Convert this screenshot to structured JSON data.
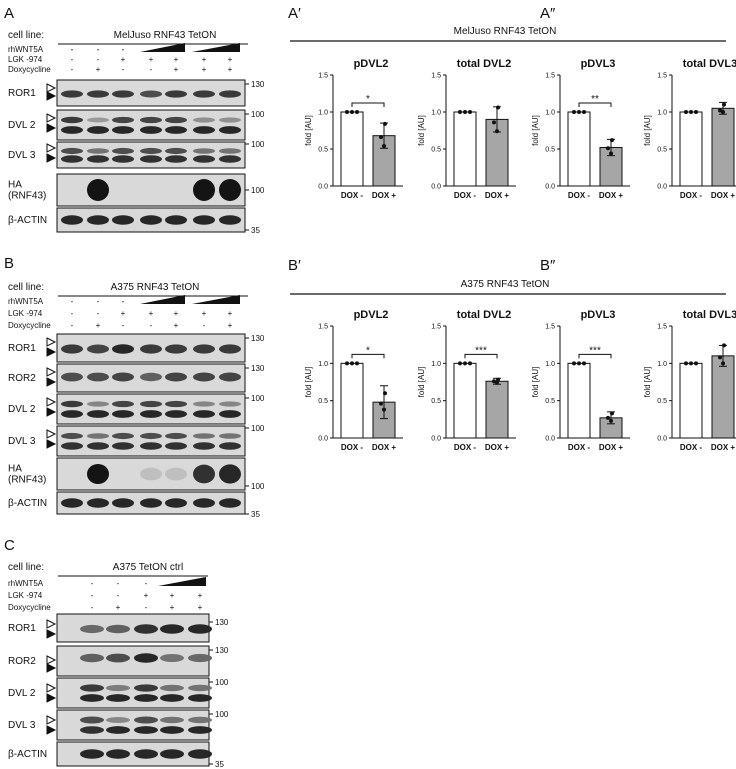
{
  "panels": {
    "A": {
      "letter": "A",
      "cell_line_label": "cell line:",
      "cell_line": "MelJuso   RNF43   TetON",
      "treatments": [
        {
          "label": "rhWNT5A",
          "values": [
            "-",
            "-",
            "-",
            "",
            "",
            " ",
            ""
          ]
        },
        {
          "label": "LGK -974",
          "values": [
            "-",
            "-",
            "+",
            "+",
            "+",
            "+",
            "+"
          ]
        },
        {
          "label": "Doxycycline",
          "values": [
            "-",
            "+",
            "-",
            "-",
            "+",
            "+",
            "+"
          ]
        }
      ],
      "blots": [
        {
          "name": "ROR1",
          "mw": "130"
        },
        {
          "name": "DVL 2",
          "mw": "100"
        },
        {
          "name": "DVL 3",
          "mw": "100"
        },
        {
          "name": "HA\n(RNF43)",
          "mw": "100"
        },
        {
          "name": "β-ACTIN",
          "mw": "35"
        }
      ]
    },
    "B": {
      "letter": "B",
      "cell_line_label": "cell line:",
      "cell_line": "A375   RNF43   TetON",
      "treatments": [
        {
          "label": "rhWNT5A"
        },
        {
          "label": "LGK -974",
          "values": [
            "-",
            "-",
            "+",
            "+",
            "+",
            "+",
            "+"
          ]
        },
        {
          "label": "Doxycycline",
          "values": [
            "-",
            "+",
            "-",
            "-",
            "+",
            "-",
            "+"
          ]
        }
      ],
      "blots": [
        {
          "name": "ROR1",
          "mw": "130"
        },
        {
          "name": "ROR2",
          "mw": "130"
        },
        {
          "name": "DVL 2",
          "mw": "100"
        },
        {
          "name": "DVL 3",
          "mw": "100"
        },
        {
          "name": "HA\n(RNF43)",
          "mw": "100"
        },
        {
          "name": "β-ACTIN",
          "mw": "35"
        }
      ]
    },
    "C": {
      "letter": "C",
      "cell_line_label": "cell line:",
      "cell_line": "A375   TetON   ctrl",
      "treatments": [
        {
          "label": "rhWNT5A"
        },
        {
          "label": "LGK -974",
          "values": [
            "-",
            "-",
            "+",
            "+",
            "+"
          ]
        },
        {
          "label": "Doxycycline",
          "values": [
            "-",
            "+",
            "-",
            "+",
            "+"
          ]
        }
      ],
      "blots": [
        {
          "name": "ROR1",
          "mw": "130"
        },
        {
          "name": "ROR2",
          "mw": "130"
        },
        {
          "name": "DVL 2",
          "mw": "100"
        },
        {
          "name": "DVL 3",
          "mw": "100"
        },
        {
          "name": "β-ACTIN",
          "mw": "35"
        }
      ]
    }
  },
  "chart_data": [
    {
      "group_letters": [
        "A′",
        "A″"
      ],
      "group_title": "MelJuso   RNF43   TetON",
      "charts": [
        {
          "type": "bar",
          "title": "pDVL2",
          "categories": [
            "DOX -",
            "DOX +"
          ],
          "values": [
            1.0,
            0.68
          ],
          "errors": [
            0,
            0.17
          ],
          "points": [
            [
              1,
              1,
              1
            ],
            [
              0.54,
              0.66,
              0.84
            ]
          ],
          "ylabel": "fold [AU]",
          "ylim": [
            0,
            1.5
          ],
          "yticks": [
            "0.0",
            "0.5",
            "1.0",
            "1.5"
          ],
          "sig": "*"
        },
        {
          "type": "bar",
          "title": "total DVL2",
          "categories": [
            "DOX -",
            "DOX +"
          ],
          "values": [
            1.0,
            0.9
          ],
          "errors": [
            0,
            0.17
          ],
          "points": [
            [
              1,
              1,
              1
            ],
            [
              0.74,
              0.86,
              1.06
            ]
          ],
          "ylabel": "fold [AU]",
          "ylim": [
            0,
            1.5
          ],
          "yticks": [
            "0.0",
            "0.5",
            "1.0",
            "1.5"
          ],
          "sig": ""
        },
        {
          "type": "bar",
          "title": "pDVL3",
          "categories": [
            "DOX -",
            "DOX +"
          ],
          "values": [
            1.0,
            0.52
          ],
          "errors": [
            0,
            0.11
          ],
          "points": [
            [
              1,
              1,
              1
            ],
            [
              0.44,
              0.51,
              0.62
            ]
          ],
          "ylabel": "fold [AU]",
          "ylim": [
            0,
            1.5
          ],
          "yticks": [
            "0.0",
            "0.5",
            "1.0",
            "1.5"
          ],
          "sig": "**"
        },
        {
          "type": "bar",
          "title": "total DVL3",
          "categories": [
            "DOX -",
            "DOX +"
          ],
          "values": [
            1.0,
            1.05
          ],
          "errors": [
            0,
            0.08
          ],
          "points": [
            [
              1,
              1,
              1
            ],
            [
              1.0,
              1.02,
              1.1
            ]
          ],
          "ylabel": "fold [AU]",
          "ylim": [
            0,
            1.5
          ],
          "yticks": [
            "0.0",
            "0.5",
            "1.0",
            "1.5"
          ],
          "sig": ""
        }
      ]
    },
    {
      "group_letters": [
        "B′",
        "B″"
      ],
      "group_title": "A375 RNF43   TetON",
      "charts": [
        {
          "type": "bar",
          "title": "pDVL2",
          "categories": [
            "DOX -",
            "DOX +"
          ],
          "values": [
            1.0,
            0.48
          ],
          "errors": [
            0,
            0.22
          ],
          "points": [
            [
              1,
              1,
              1
            ],
            [
              0.38,
              0.46,
              0.6
            ]
          ],
          "ylabel": "fold [AU]",
          "ylim": [
            0,
            1.5
          ],
          "yticks": [
            "0.0",
            "0.5",
            "1.0",
            "1.5"
          ],
          "sig": "*"
        },
        {
          "type": "bar",
          "title": "total DVL2",
          "categories": [
            "DOX -",
            "DOX +"
          ],
          "values": [
            1.0,
            0.76
          ],
          "errors": [
            0,
            0.04
          ],
          "points": [
            [
              1,
              1,
              1
            ],
            [
              0.74,
              0.76,
              0.78
            ]
          ],
          "ylabel": "fold [AU]",
          "ylim": [
            0,
            1.5
          ],
          "yticks": [
            "0.0",
            "0.5",
            "1.0",
            "1.5"
          ],
          "sig": "***"
        },
        {
          "type": "bar",
          "title": "pDVL3",
          "categories": [
            "DOX -",
            "DOX +"
          ],
          "values": [
            1.0,
            0.27
          ],
          "errors": [
            0,
            0.08
          ],
          "points": [
            [
              1,
              1,
              1
            ],
            [
              0.23,
              0.27,
              0.33
            ]
          ],
          "ylabel": "fold [AU]",
          "ylim": [
            0,
            1.5
          ],
          "yticks": [
            "0.0",
            "0.5",
            "1.0",
            "1.5"
          ],
          "sig": "***"
        },
        {
          "type": "bar",
          "title": "total DVL3",
          "categories": [
            "DOX -",
            "DOX +"
          ],
          "values": [
            1.0,
            1.1
          ],
          "errors": [
            0,
            0.14
          ],
          "points": [
            [
              1,
              1,
              1
            ],
            [
              1.0,
              1.08,
              1.24
            ]
          ],
          "ylabel": "fold [AU]",
          "ylim": [
            0,
            1.5
          ],
          "yticks": [
            "0.0",
            "0.5",
            "1.0",
            "1.5"
          ],
          "sig": ""
        }
      ]
    }
  ]
}
